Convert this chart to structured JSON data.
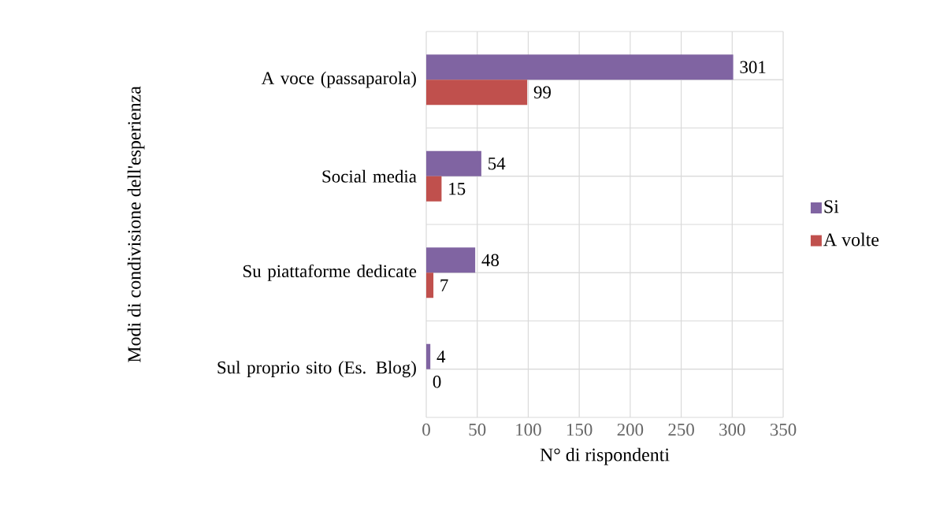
{
  "chart_data": {
    "type": "bar",
    "orientation": "horizontal",
    "xlabel": "N° di rispondenti",
    "ylabel": "Modi di condivisione dell'esperienza",
    "categories": [
      "A voce (passaparola)",
      "Social media",
      "Su piattaforme dedicate",
      "Sul proprio sito (Es. Blog)"
    ],
    "series": [
      {
        "name": "Si",
        "color": "#8064a2",
        "values": [
          301,
          54,
          48,
          4
        ]
      },
      {
        "name": "A volte",
        "color": "#c0504d",
        "values": [
          99,
          15,
          7,
          0
        ]
      }
    ],
    "xlim": [
      0,
      350
    ],
    "xticks": [
      0,
      50,
      100,
      150,
      200,
      250,
      300,
      350
    ],
    "grid": true,
    "legend": "right",
    "data_labels": true
  }
}
